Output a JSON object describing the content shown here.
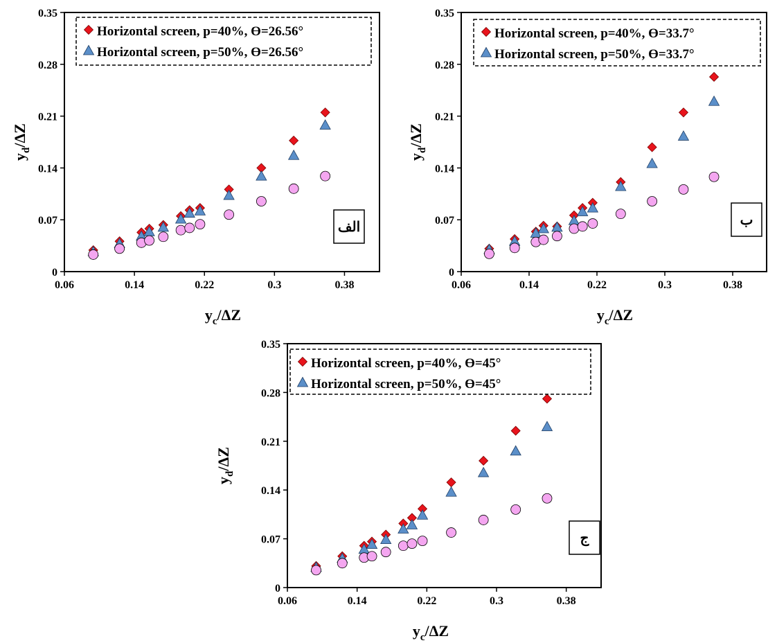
{
  "chart_data": [
    {
      "id": "alef",
      "type": "scatter",
      "panel_label": "الف",
      "xlabel": "y_c/ΔZ",
      "ylabel": "y_d/ΔZ",
      "xlim": [
        0.06,
        0.42
      ],
      "ylim": [
        0,
        0.35
      ],
      "xticks": [
        "0.06",
        "0.14",
        "0.22",
        "0.3",
        "0.38"
      ],
      "yticks": [
        "0",
        "0.07",
        "0.14",
        "0.21",
        "0.28",
        "0.35"
      ],
      "grid": false,
      "legend_position": "top-left",
      "series": [
        {
          "name": "Horizontal screen, p=40%, ϴ=26.56°",
          "marker": "diamond",
          "color": "#e8141c",
          "x": [
            0.093,
            0.123,
            0.148,
            0.157,
            0.173,
            0.193,
            0.203,
            0.215,
            0.248,
            0.285,
            0.322,
            0.358
          ],
          "y": [
            0.029,
            0.041,
            0.053,
            0.058,
            0.063,
            0.075,
            0.083,
            0.086,
            0.111,
            0.14,
            0.177,
            0.215
          ]
        },
        {
          "name": "Horizontal screen, p=50%, ϴ=26.56°",
          "marker": "triangle",
          "color": "#5b8fc9",
          "x": [
            0.093,
            0.123,
            0.148,
            0.157,
            0.173,
            0.193,
            0.203,
            0.215,
            0.248,
            0.285,
            0.322,
            0.358
          ],
          "y": [
            0.027,
            0.038,
            0.048,
            0.054,
            0.06,
            0.071,
            0.079,
            0.082,
            0.103,
            0.129,
            0.157,
            0.198
          ]
        },
        {
          "name": "",
          "marker": "circle",
          "color": "#f4a6f0",
          "x": [
            0.093,
            0.123,
            0.148,
            0.157,
            0.173,
            0.193,
            0.203,
            0.215,
            0.248,
            0.285,
            0.322,
            0.358
          ],
          "y": [
            0.023,
            0.031,
            0.039,
            0.042,
            0.047,
            0.056,
            0.059,
            0.064,
            0.077,
            0.095,
            0.112,
            0.129
          ]
        }
      ]
    },
    {
      "id": "be",
      "type": "scatter",
      "panel_label": "ب",
      "xlabel": "y_c/ΔZ",
      "ylabel": "y_d/ΔZ",
      "xlim": [
        0.06,
        0.42
      ],
      "ylim": [
        0,
        0.35
      ],
      "xticks": [
        "0.06",
        "0.14",
        "0.22",
        "0.3",
        "0.38"
      ],
      "yticks": [
        "0",
        "0.07",
        "0.14",
        "0.21",
        "0.28",
        "0.35"
      ],
      "grid": false,
      "legend_position": "top-left",
      "series": [
        {
          "name": "Horizontal screen, p=40%, ϴ=33.7°",
          "marker": "diamond",
          "color": "#e8141c",
          "x": [
            0.093,
            0.123,
            0.148,
            0.157,
            0.173,
            0.193,
            0.203,
            0.215,
            0.248,
            0.285,
            0.322,
            0.358
          ],
          "y": [
            0.031,
            0.044,
            0.054,
            0.062,
            0.061,
            0.076,
            0.086,
            0.093,
            0.121,
            0.168,
            0.215,
            0.263
          ]
        },
        {
          "name": "Horizontal screen, p=50%, ϴ=33.7°",
          "marker": "triangle",
          "color": "#5b8fc9",
          "x": [
            0.093,
            0.123,
            0.148,
            0.157,
            0.173,
            0.193,
            0.203,
            0.215,
            0.248,
            0.285,
            0.322,
            0.358
          ],
          "y": [
            0.03,
            0.041,
            0.052,
            0.058,
            0.06,
            0.069,
            0.081,
            0.086,
            0.115,
            0.146,
            0.183,
            0.23
          ]
        },
        {
          "name": "",
          "marker": "circle",
          "color": "#f4a6f0",
          "x": [
            0.093,
            0.123,
            0.148,
            0.157,
            0.173,
            0.193,
            0.203,
            0.215,
            0.248,
            0.285,
            0.322,
            0.358
          ],
          "y": [
            0.024,
            0.032,
            0.04,
            0.043,
            0.048,
            0.058,
            0.061,
            0.065,
            0.078,
            0.095,
            0.111,
            0.128
          ]
        }
      ]
    },
    {
      "id": "jim",
      "type": "scatter",
      "panel_label": "ج",
      "xlabel": "y_c/ΔZ",
      "ylabel": "y_d/ΔZ",
      "xlim": [
        0.06,
        0.42
      ],
      "ylim": [
        0,
        0.35
      ],
      "xticks": [
        "0.06",
        "0.14",
        "0.22",
        "0.3",
        "0.38"
      ],
      "yticks": [
        "0",
        "0.07",
        "0.14",
        "0.21",
        "0.28",
        "0.35"
      ],
      "grid": false,
      "legend_position": "top-left",
      "series": [
        {
          "name": "Horizontal screen, p=40%, ϴ=45°",
          "marker": "diamond",
          "color": "#e8141c",
          "x": [
            0.093,
            0.123,
            0.148,
            0.157,
            0.173,
            0.193,
            0.203,
            0.215,
            0.248,
            0.285,
            0.322,
            0.358
          ],
          "y": [
            0.031,
            0.045,
            0.06,
            0.066,
            0.076,
            0.092,
            0.1,
            0.113,
            0.151,
            0.182,
            0.225,
            0.271
          ]
        },
        {
          "name": "Horizontal screen, p=50%, ϴ=45°",
          "marker": "triangle",
          "color": "#5b8fc9",
          "x": [
            0.093,
            0.123,
            0.148,
            0.157,
            0.173,
            0.193,
            0.203,
            0.215,
            0.248,
            0.285,
            0.322,
            0.358
          ],
          "y": [
            0.029,
            0.042,
            0.055,
            0.062,
            0.069,
            0.084,
            0.09,
            0.104,
            0.137,
            0.165,
            0.196,
            0.231
          ]
        },
        {
          "name": "",
          "marker": "circle",
          "color": "#f4a6f0",
          "x": [
            0.093,
            0.123,
            0.148,
            0.157,
            0.173,
            0.193,
            0.203,
            0.215,
            0.248,
            0.285,
            0.322,
            0.358
          ],
          "y": [
            0.025,
            0.035,
            0.043,
            0.045,
            0.051,
            0.06,
            0.063,
            0.067,
            0.079,
            0.097,
            0.112,
            0.128
          ]
        }
      ]
    }
  ]
}
